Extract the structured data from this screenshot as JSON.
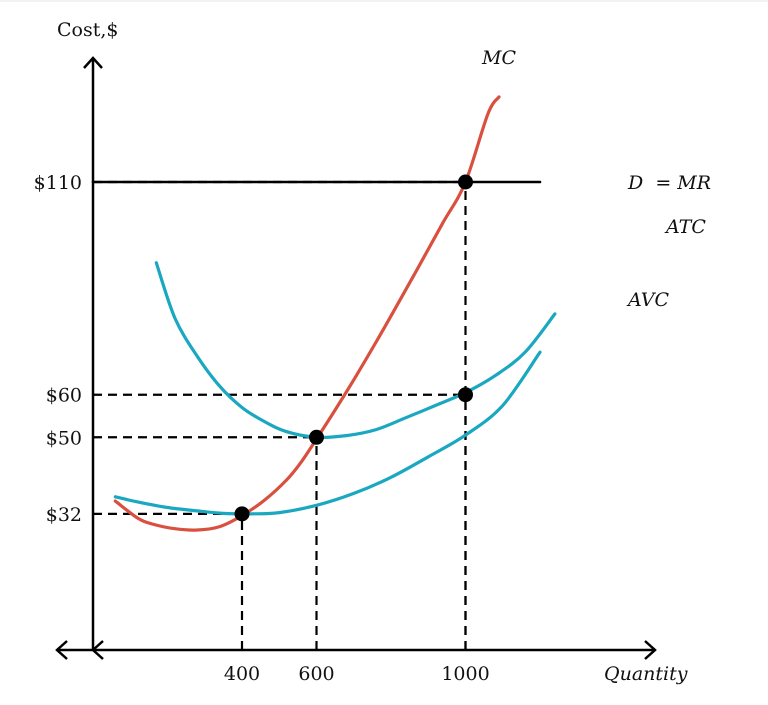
{
  "chart_data": {
    "type": "line",
    "title": "",
    "ylabel": "Cost,$",
    "xlabel": "Quantity",
    "xlim": [
      0,
      1250
    ],
    "ylim": [
      0,
      140
    ],
    "grid": false,
    "x_ticks": [
      {
        "value": 400,
        "label": "400"
      },
      {
        "value": 600,
        "label": "600"
      },
      {
        "value": 1000,
        "label": "1000"
      }
    ],
    "y_ticks": [
      {
        "value": 32,
        "label": "$32"
      },
      {
        "value": 50,
        "label": "$50"
      },
      {
        "value": 60,
        "label": "$60"
      },
      {
        "value": 110,
        "label": "$110"
      }
    ],
    "series": [
      {
        "name": "MC",
        "color": "#d9503f",
        "x": [
          60,
          120,
          160,
          220,
          280,
          340,
          400,
          460,
          520,
          560,
          600,
          650,
          700,
          760,
          820,
          880,
          940,
          1000,
          1060,
          1090
        ],
        "y": [
          35,
          31,
          29.6,
          28.5,
          28.2,
          29,
          31.6,
          35.2,
          40,
          44.3,
          49.6,
          56.4,
          63.5,
          72.4,
          81.6,
          91,
          100.5,
          110,
          126,
          130
        ]
      },
      {
        "name": "ATC",
        "color": "#1aa7c0",
        "x": [
          170,
          220,
          280,
          340,
          400,
          460,
          520,
          600,
          680,
          760,
          840,
          920,
          1000,
          1080,
          1160,
          1240
        ],
        "y": [
          91,
          78,
          69,
          62,
          57,
          53.7,
          51.3,
          50,
          50.4,
          51.8,
          54.6,
          57.5,
          60.5,
          64.5,
          70,
          79
        ]
      },
      {
        "name": "AVC",
        "color": "#1aa7c0",
        "x": [
          60,
          120,
          200,
          280,
          350,
          420,
          500,
          600,
          700,
          800,
          900,
          1000,
          1100,
          1200
        ],
        "y": [
          36,
          34.8,
          33.5,
          32.7,
          32.1,
          32,
          32.3,
          34,
          36.8,
          40.6,
          45.4,
          50.5,
          57.5,
          70
        ]
      },
      {
        "name": "D = MR",
        "color": "#000000",
        "x": [
          0,
          1200
        ],
        "y": [
          110,
          110
        ]
      }
    ],
    "points": [
      {
        "x": 400,
        "y": 32
      },
      {
        "x": 600,
        "y": 50
      },
      {
        "x": 1000,
        "y": 60
      },
      {
        "x": 1000,
        "y": 110
      }
    ],
    "labels": {
      "mc": "MC",
      "dmr": "D  = MR",
      "atc": "ATC",
      "avc": "AVC"
    }
  }
}
